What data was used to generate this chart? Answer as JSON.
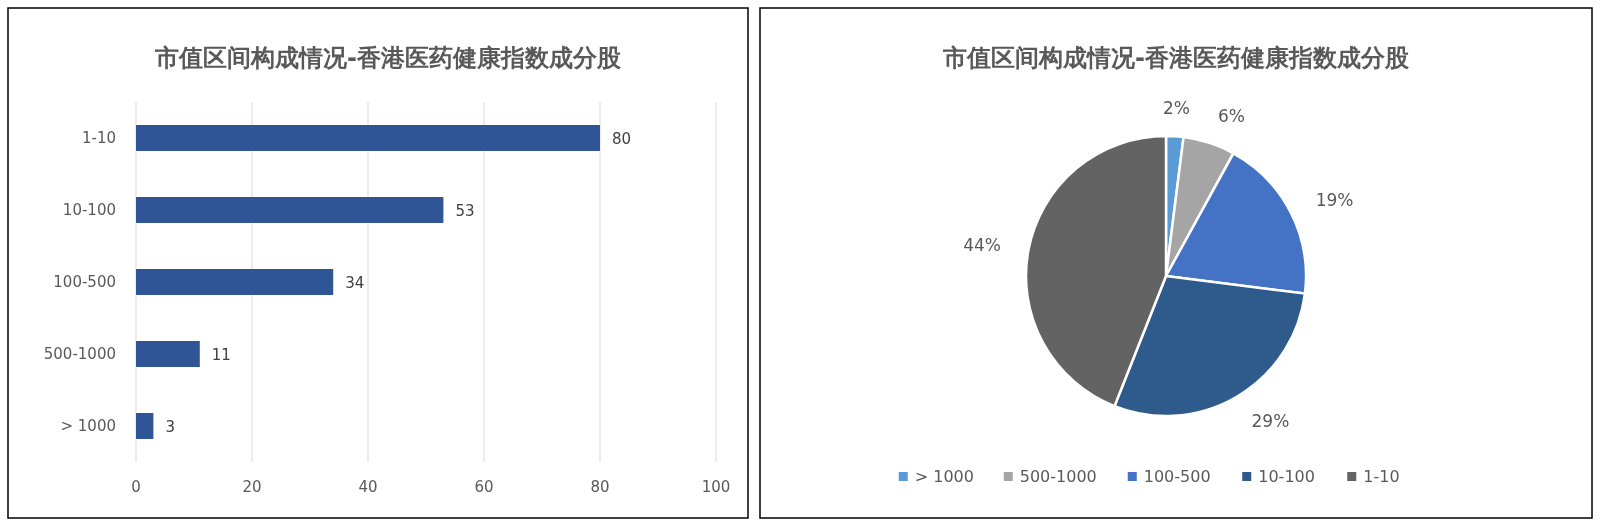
{
  "chart_data": [
    {
      "type": "bar",
      "title": "市值区间构成情况-香港医药健康指数成分股",
      "orientation": "horizontal",
      "categories": [
        "1-10",
        "10-100",
        "100-500",
        "500-1000",
        "> 1000"
      ],
      "values": [
        80,
        53,
        34,
        11,
        3
      ],
      "color": "#2f5597",
      "xlim": [
        0,
        100
      ],
      "xticks": [
        0,
        20,
        40,
        60,
        80,
        100
      ],
      "grid": "x",
      "data_labels": true
    },
    {
      "type": "pie",
      "title": "市值区间构成情况-香港医药健康指数成分股",
      "categories": [
        "> 1000",
        "500-1000",
        "100-500",
        "10-100",
        "1-10"
      ],
      "values": [
        2,
        6,
        19,
        29,
        44
      ],
      "colors": [
        "#5b9bd5",
        "#a5a5a5",
        "#4472c4",
        "#2e5b8c",
        "#636363"
      ],
      "value_labels": [
        "2%",
        "6%",
        "19%",
        "29%",
        "44%"
      ],
      "legend": "bottom"
    }
  ]
}
